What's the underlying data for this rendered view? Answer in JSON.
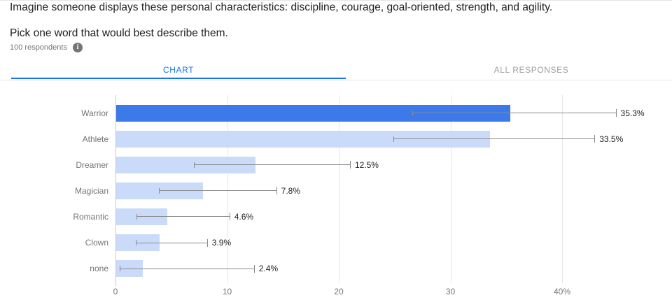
{
  "header": {
    "title": "Imagine someone displays these personal characteristics: discipline, courage, goal-oriented, strength, and agility.",
    "subtitle": "Pick one word that would best describe them.",
    "respondents": "100 respondents",
    "info_icon_glyph": "i"
  },
  "tabs": [
    {
      "label": "CHART",
      "active": true
    },
    {
      "label": "ALL RESPONSES",
      "active": false
    }
  ],
  "colors": {
    "accent": "#1a73e8",
    "inactive_tab": "#9e9e9e",
    "text_dark": "#212121",
    "text_gray": "#757575"
  },
  "chart_data": {
    "type": "bar",
    "orientation": "horizontal",
    "title": "",
    "xlabel": "",
    "ylabel": "",
    "unit": "%",
    "xlim": [
      0,
      46.5
    ],
    "grid": true,
    "categories": [
      "Warrior",
      "Athlete",
      "Dreamer",
      "Magician",
      "Romantic",
      "Clown",
      "none"
    ],
    "values": [
      35.3,
      33.5,
      12.5,
      7.8,
      4.6,
      3.9,
      2.4
    ],
    "value_labels": [
      "35.3%",
      "33.5%",
      "12.5%",
      "7.8%",
      "4.6%",
      "3.9%",
      "2.4%"
    ],
    "error_bars": [
      {
        "low": 26.6,
        "high": 44.8
      },
      {
        "low": 24.9,
        "high": 42.9
      },
      {
        "low": 7.0,
        "high": 21.0
      },
      {
        "low": 3.9,
        "high": 14.4
      },
      {
        "low": 1.9,
        "high": 10.2
      },
      {
        "low": 1.8,
        "high": 8.2
      },
      {
        "low": 0.4,
        "high": 12.4
      }
    ],
    "highlighted_index": 0,
    "x_ticks": [
      {
        "value": 0,
        "label": "0"
      },
      {
        "value": 10,
        "label": "10"
      },
      {
        "value": 20,
        "label": "20"
      },
      {
        "value": 30,
        "label": "30"
      },
      {
        "value": 40,
        "label": "40%"
      }
    ],
    "colors": {
      "bar": "#c9dbf8",
      "bar_highlight": "#3d7ae9",
      "grid": "#e6e6e6",
      "zero_line": "#c6c6c6",
      "error_bar": "#8a8a8a"
    }
  }
}
